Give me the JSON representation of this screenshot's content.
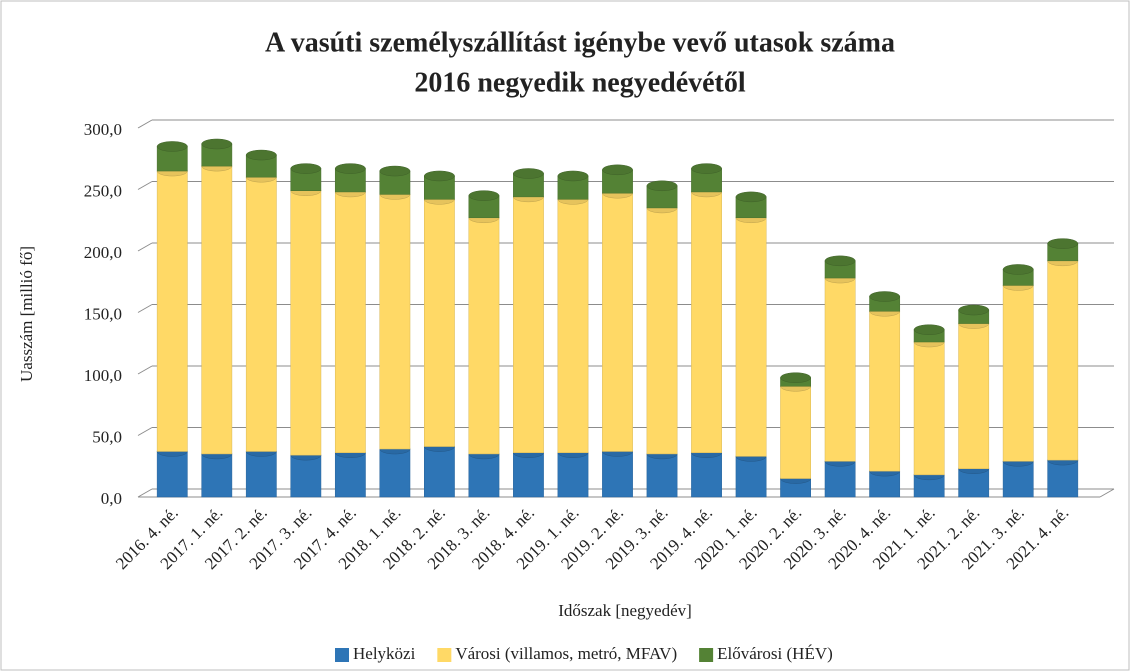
{
  "chart_data": {
    "type": "stacked_bar",
    "title": "A vasúti személyszállítást igénybe vevő utasok száma",
    "subtitle": "2016 negyedik negyedévétől",
    "x_label": "Időszak [negyedév]",
    "y_label": "Uasszám [millió fő]",
    "categories": [
      "2016. 4. né.",
      "2017. 1. né.",
      "2017. 2. né.",
      "2017. 3. né.",
      "2017. 4. né.",
      "2018. 1. né.",
      "2018. 2. né.",
      "2018. 3. né.",
      "2018. 4. né.",
      "2019. 1. né.",
      "2019. 2. né.",
      "2019. 3. né.",
      "2019. 4. né.",
      "2020. 1. né.",
      "2020. 2. né.",
      "2020. 3. né.",
      "2020. 4. né.",
      "2021. 1. né.",
      "2021. 2. né.",
      "2021. 3. né.",
      "2021. 4. né."
    ],
    "series": [
      {
        "name": "Helyközi",
        "color": "#2e75b6",
        "values": [
          37,
          35,
          37,
          34,
          36,
          39,
          41,
          35,
          36,
          36,
          37,
          35,
          36,
          33,
          15,
          29,
          21,
          18,
          23,
          29,
          30
        ]
      },
      {
        "name": "Városi (villamos, metró, MFAV)",
        "color": "#ffd966",
        "values": [
          228,
          234,
          223,
          215,
          212,
          207,
          201,
          192,
          208,
          206,
          210,
          200,
          212,
          194,
          75,
          149,
          130,
          108,
          118,
          143,
          162
        ]
      },
      {
        "name": "Elővárosi (HÉV)",
        "color": "#548235",
        "values": [
          20,
          18,
          18,
          18,
          19,
          19,
          19,
          18,
          19,
          19,
          19,
          18,
          19,
          17,
          7,
          14,
          12,
          10,
          11,
          13,
          14
        ]
      }
    ],
    "ylim": [
      0,
      300
    ],
    "yticks": [
      {
        "value": 0,
        "label": "0,0"
      },
      {
        "value": 50,
        "label": "50,0"
      },
      {
        "value": 100,
        "label": "100,0"
      },
      {
        "value": 150,
        "label": "150,0"
      },
      {
        "value": 200,
        "label": "200,0"
      },
      {
        "value": 250,
        "label": "250,0"
      },
      {
        "value": 300,
        "label": "300,0"
      }
    ],
    "grid": true,
    "legend": "bottom"
  }
}
